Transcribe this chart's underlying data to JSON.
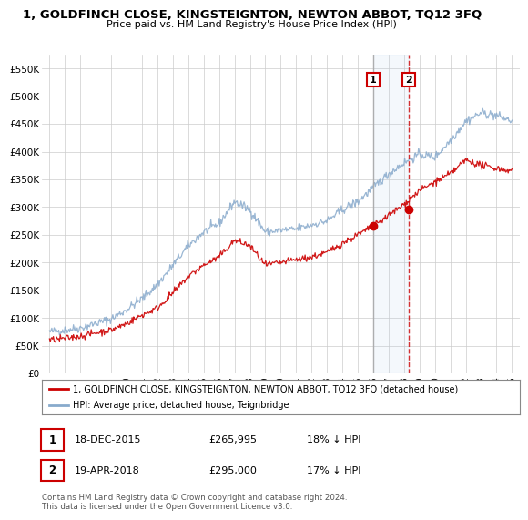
{
  "title": "1, GOLDFINCH CLOSE, KINGSTEIGNTON, NEWTON ABBOT, TQ12 3FQ",
  "subtitle": "Price paid vs. HM Land Registry's House Price Index (HPI)",
  "legend_line1": "1, GOLDFINCH CLOSE, KINGSTEIGNTON, NEWTON ABBOT, TQ12 3FQ (detached house)",
  "legend_line2": "HPI: Average price, detached house, Teignbridge",
  "line_color_red": "#cc0000",
  "line_color_blue": "#88aacc",
  "sale1_label": "1",
  "sale1_date": "18-DEC-2015",
  "sale1_price": "£265,995",
  "sale1_hpi": "18% ↓ HPI",
  "sale2_label": "2",
  "sale2_date": "19-APR-2018",
  "sale2_price": "£295,000",
  "sale2_hpi": "17% ↓ HPI",
  "footer": "Contains HM Land Registry data © Crown copyright and database right 2024.\nThis data is licensed under the Open Government Licence v3.0.",
  "ylim": [
    0,
    575000
  ],
  "yticks": [
    0,
    50000,
    100000,
    150000,
    200000,
    250000,
    300000,
    350000,
    400000,
    450000,
    500000,
    550000
  ],
  "ytick_labels": [
    "£0",
    "£50K",
    "£100K",
    "£150K",
    "£200K",
    "£250K",
    "£300K",
    "£350K",
    "£400K",
    "£450K",
    "£500K",
    "£550K"
  ],
  "sale1_x": 2016.0,
  "sale1_y": 265995,
  "sale2_x": 2018.3,
  "sale2_y": 295000,
  "background_color": "#ffffff",
  "grid_color": "#cccccc",
  "xmin": 1995,
  "xmax": 2025
}
